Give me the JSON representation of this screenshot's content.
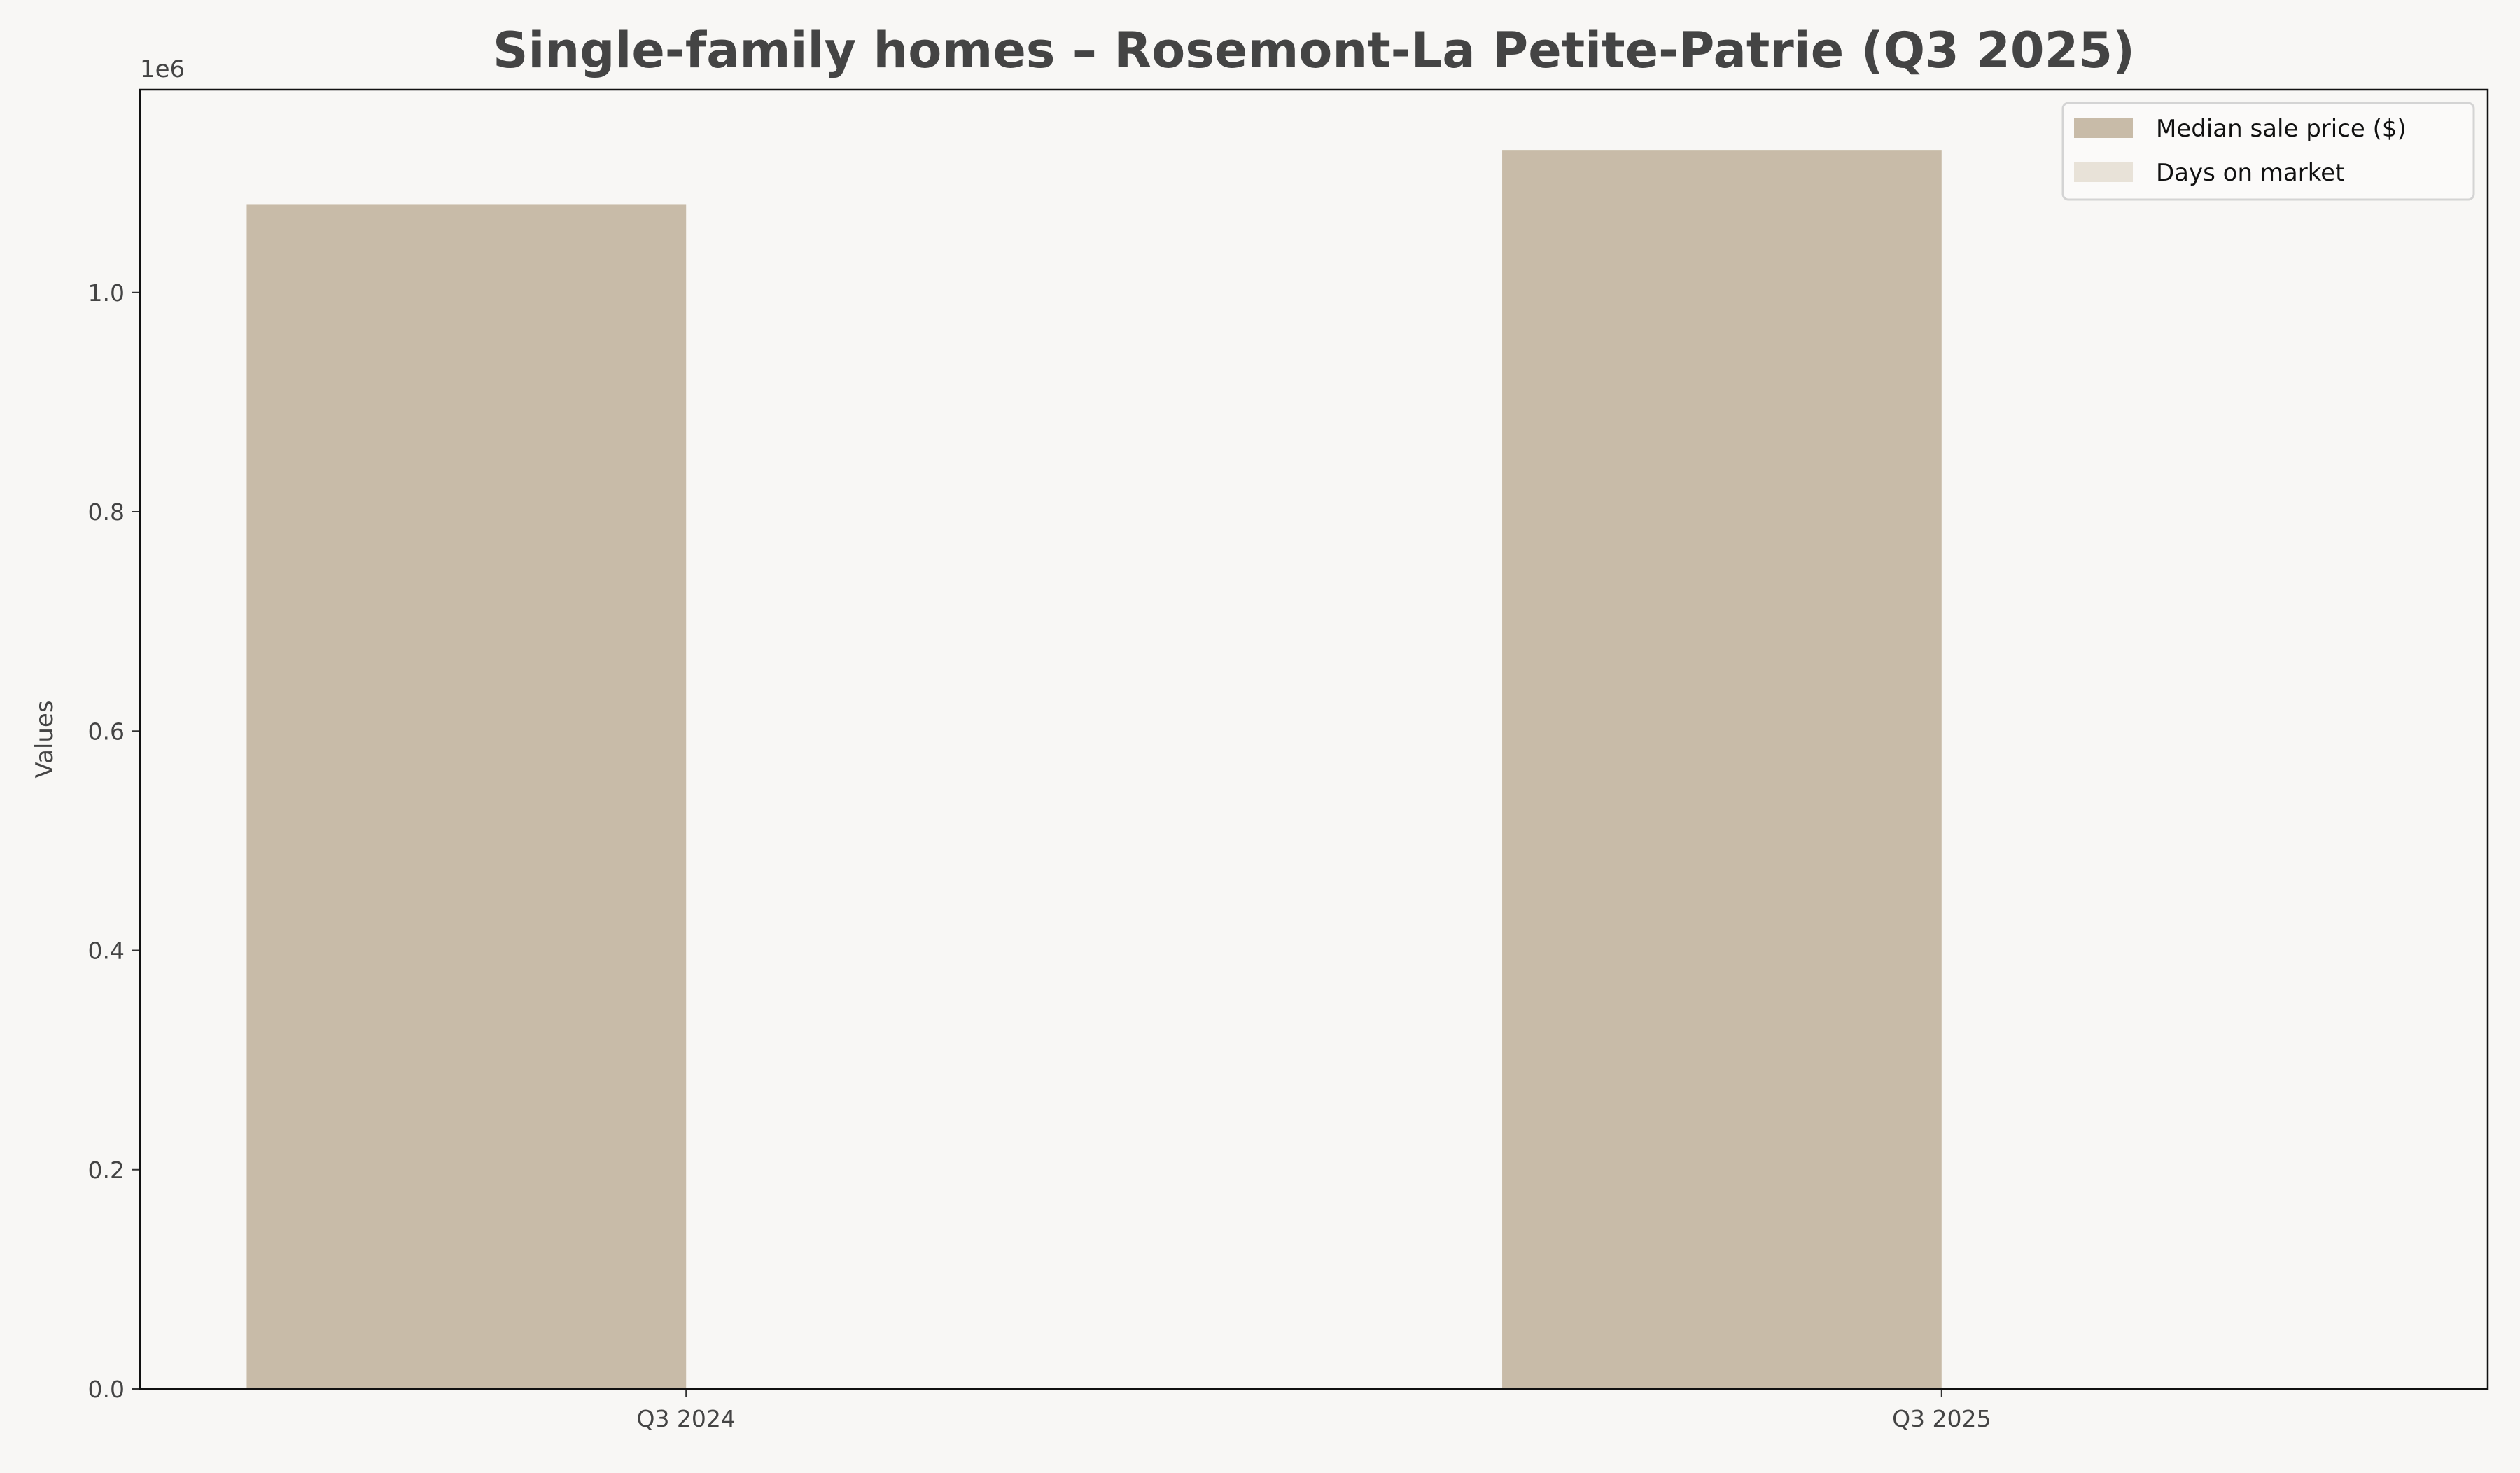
{
  "chart_data": {
    "type": "bar",
    "title": "Single-family homes – Rosemont-La Petite-Patrie (Q3 2025)",
    "xlabel": "",
    "ylabel": "Values",
    "y_offset_label": "1e6",
    "categories": [
      "Q3 2024",
      "Q3 2025"
    ],
    "series": [
      {
        "name": "Median sale price ($)",
        "values": [
          1080000,
          1130000
        ],
        "color": "#c8bba8"
      },
      {
        "name": "Days on market",
        "values": [
          null,
          null
        ],
        "color": "#e8e2d8"
      }
    ],
    "ylim": [
      0,
      1185000
    ],
    "yticks": [
      0,
      200000,
      400000,
      600000,
      800000,
      1000000
    ],
    "ytick_labels": [
      "0.0",
      "0.2",
      "0.4",
      "0.6",
      "0.8",
      "1.0"
    ],
    "grid": false,
    "legend_placement": "top-right",
    "background": "#f8f7f5"
  }
}
